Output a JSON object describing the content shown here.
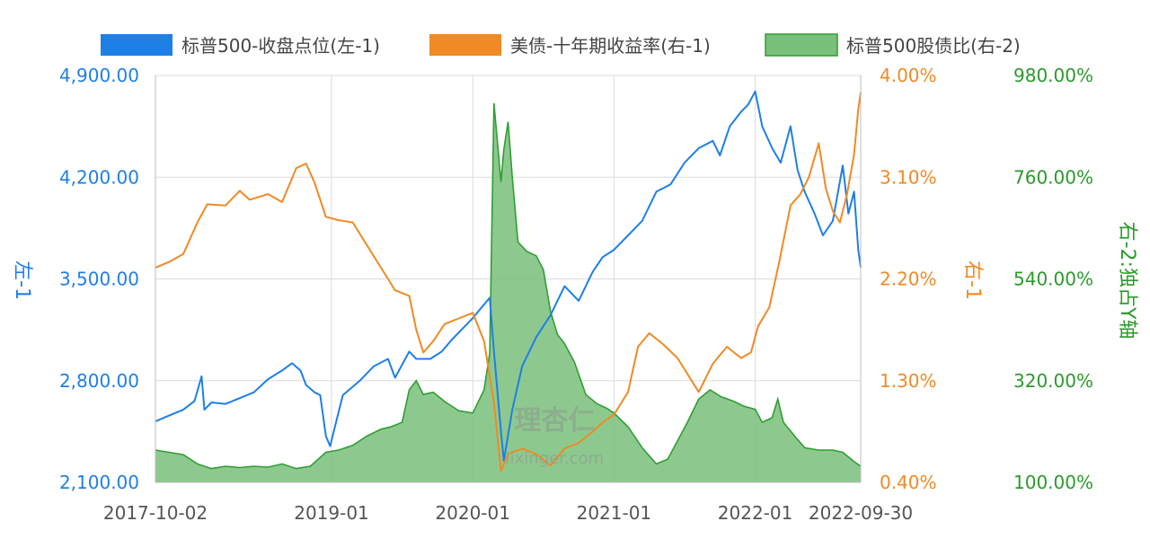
{
  "chart_data": {
    "type": "line",
    "legend": {
      "placement": "top",
      "entries": [
        {
          "label": "标普500-收盘点位(左-1)",
          "color": "#1e7fe6",
          "kind": "line"
        },
        {
          "label": "美债-十年期收益率(右-1)",
          "color": "#f08a24",
          "kind": "line"
        },
        {
          "label": "标普500股债比(右-2)",
          "color": "#79c07a",
          "kind": "area"
        }
      ]
    },
    "x_ticks": [
      "2017-10-02",
      "2019-01",
      "2020-01",
      "2021-01",
      "2022-01",
      "2022-09-30"
    ],
    "x_tick_dates": [
      2017.753,
      2019.0,
      2020.0,
      2021.0,
      2022.0,
      2022.747
    ],
    "x_range": [
      2017.753,
      2022.747
    ],
    "axes": {
      "left": {
        "title": "左-1",
        "color": "#1e7fe6",
        "ylim": [
          2100,
          4900
        ],
        "ticks": [
          "4,900.00",
          "4,200.00",
          "3,500.00",
          "2,800.00",
          "2,100.00"
        ],
        "tick_values": [
          4900,
          4200,
          3500,
          2800,
          2100
        ]
      },
      "right1": {
        "title": "右-1",
        "color": "#f08a24",
        "ylim": [
          0.4,
          4.0
        ],
        "ticks": [
          "4.00%",
          "3.10%",
          "2.20%",
          "1.30%",
          "0.40%"
        ],
        "tick_values": [
          4.0,
          3.1,
          2.2,
          1.3,
          0.4
        ]
      },
      "right2": {
        "title": "右-2:独占Y轴",
        "color": "#2a9a2a",
        "ylim": [
          100,
          980
        ],
        "ticks": [
          "980.00%",
          "760.00%",
          "540.00%",
          "320.00%",
          "100.00%"
        ],
        "tick_values": [
          980,
          760,
          540,
          320,
          100
        ]
      }
    },
    "grid": true,
    "watermark": "理杏仁 lixinger.com",
    "series": [
      {
        "name": "标普500-收盘点位(左-1)",
        "axis": "left",
        "color": "#1e7fe6",
        "style": "line",
        "points": [
          [
            2017.753,
            2520
          ],
          [
            2017.85,
            2560
          ],
          [
            2017.95,
            2600
          ],
          [
            2018.03,
            2660
          ],
          [
            2018.08,
            2830
          ],
          [
            2018.1,
            2600
          ],
          [
            2018.15,
            2650
          ],
          [
            2018.25,
            2640
          ],
          [
            2018.35,
            2680
          ],
          [
            2018.45,
            2720
          ],
          [
            2018.55,
            2810
          ],
          [
            2018.65,
            2870
          ],
          [
            2018.72,
            2920
          ],
          [
            2018.78,
            2870
          ],
          [
            2018.82,
            2770
          ],
          [
            2018.88,
            2720
          ],
          [
            2018.92,
            2700
          ],
          [
            2018.96,
            2420
          ],
          [
            2018.99,
            2350
          ],
          [
            2019.08,
            2700
          ],
          [
            2019.2,
            2800
          ],
          [
            2019.3,
            2900
          ],
          [
            2019.4,
            2950
          ],
          [
            2019.45,
            2820
          ],
          [
            2019.55,
            3000
          ],
          [
            2019.6,
            2950
          ],
          [
            2019.7,
            2950
          ],
          [
            2019.78,
            3000
          ],
          [
            2019.85,
            3080
          ],
          [
            2019.92,
            3150
          ],
          [
            2020.0,
            3230
          ],
          [
            2020.05,
            3290
          ],
          [
            2020.12,
            3370
          ],
          [
            2020.15,
            3000
          ],
          [
            2020.2,
            2450
          ],
          [
            2020.22,
            2250
          ],
          [
            2020.28,
            2600
          ],
          [
            2020.35,
            2900
          ],
          [
            2020.45,
            3100
          ],
          [
            2020.55,
            3250
          ],
          [
            2020.65,
            3450
          ],
          [
            2020.75,
            3350
          ],
          [
            2020.85,
            3550
          ],
          [
            2020.92,
            3650
          ],
          [
            2021.0,
            3700
          ],
          [
            2021.1,
            3800
          ],
          [
            2021.2,
            3900
          ],
          [
            2021.3,
            4100
          ],
          [
            2021.4,
            4150
          ],
          [
            2021.5,
            4300
          ],
          [
            2021.6,
            4400
          ],
          [
            2021.7,
            4450
          ],
          [
            2021.75,
            4350
          ],
          [
            2021.82,
            4550
          ],
          [
            2021.9,
            4650
          ],
          [
            2021.95,
            4700
          ],
          [
            2022.0,
            4790
          ],
          [
            2022.05,
            4550
          ],
          [
            2022.12,
            4400
          ],
          [
            2022.18,
            4300
          ],
          [
            2022.25,
            4550
          ],
          [
            2022.3,
            4250
          ],
          [
            2022.35,
            4100
          ],
          [
            2022.42,
            3950
          ],
          [
            2022.48,
            3800
          ],
          [
            2022.55,
            3900
          ],
          [
            2022.62,
            4280
          ],
          [
            2022.66,
            3950
          ],
          [
            2022.7,
            4100
          ],
          [
            2022.73,
            3700
          ],
          [
            2022.747,
            3580
          ]
        ]
      },
      {
        "name": "美债-十年期收益率(右-1)",
        "axis": "right1",
        "color": "#f08a24",
        "style": "line",
        "points": [
          [
            2017.753,
            2.3
          ],
          [
            2017.85,
            2.35
          ],
          [
            2017.95,
            2.42
          ],
          [
            2018.05,
            2.7
          ],
          [
            2018.12,
            2.86
          ],
          [
            2018.25,
            2.85
          ],
          [
            2018.35,
            2.98
          ],
          [
            2018.42,
            2.9
          ],
          [
            2018.55,
            2.95
          ],
          [
            2018.65,
            2.88
          ],
          [
            2018.75,
            3.18
          ],
          [
            2018.82,
            3.22
          ],
          [
            2018.88,
            3.05
          ],
          [
            2018.96,
            2.75
          ],
          [
            2019.05,
            2.72
          ],
          [
            2019.15,
            2.7
          ],
          [
            2019.25,
            2.5
          ],
          [
            2019.35,
            2.3
          ],
          [
            2019.45,
            2.1
          ],
          [
            2019.55,
            2.05
          ],
          [
            2019.6,
            1.75
          ],
          [
            2019.65,
            1.55
          ],
          [
            2019.72,
            1.65
          ],
          [
            2019.8,
            1.8
          ],
          [
            2019.9,
            1.85
          ],
          [
            2020.0,
            1.9
          ],
          [
            2020.08,
            1.65
          ],
          [
            2020.15,
            1.1
          ],
          [
            2020.2,
            0.5
          ],
          [
            2020.25,
            0.65
          ],
          [
            2020.35,
            0.7
          ],
          [
            2020.45,
            0.65
          ],
          [
            2020.55,
            0.55
          ],
          [
            2020.65,
            0.7
          ],
          [
            2020.75,
            0.75
          ],
          [
            2020.85,
            0.85
          ],
          [
            2020.92,
            0.93
          ],
          [
            2021.0,
            1.0
          ],
          [
            2021.1,
            1.2
          ],
          [
            2021.17,
            1.6
          ],
          [
            2021.25,
            1.72
          ],
          [
            2021.35,
            1.62
          ],
          [
            2021.45,
            1.5
          ],
          [
            2021.55,
            1.3
          ],
          [
            2021.6,
            1.2
          ],
          [
            2021.7,
            1.45
          ],
          [
            2021.8,
            1.6
          ],
          [
            2021.9,
            1.5
          ],
          [
            2021.97,
            1.55
          ],
          [
            2022.02,
            1.78
          ],
          [
            2022.1,
            1.95
          ],
          [
            2022.17,
            2.35
          ],
          [
            2022.25,
            2.85
          ],
          [
            2022.32,
            2.95
          ],
          [
            2022.38,
            3.1
          ],
          [
            2022.45,
            3.4
          ],
          [
            2022.5,
            3.0
          ],
          [
            2022.55,
            2.8
          ],
          [
            2022.6,
            2.7
          ],
          [
            2022.65,
            2.95
          ],
          [
            2022.7,
            3.3
          ],
          [
            2022.73,
            3.7
          ],
          [
            2022.747,
            3.85
          ]
        ]
      },
      {
        "name": "标普500股债比(右-2)",
        "axis": "right2",
        "color": "#79c07a",
        "style": "area",
        "points": [
          [
            2017.753,
            170
          ],
          [
            2017.85,
            165
          ],
          [
            2017.95,
            160
          ],
          [
            2018.05,
            140
          ],
          [
            2018.15,
            130
          ],
          [
            2018.25,
            135
          ],
          [
            2018.35,
            132
          ],
          [
            2018.45,
            135
          ],
          [
            2018.55,
            133
          ],
          [
            2018.65,
            140
          ],
          [
            2018.75,
            130
          ],
          [
            2018.85,
            135
          ],
          [
            2018.96,
            165
          ],
          [
            2019.05,
            170
          ],
          [
            2019.15,
            180
          ],
          [
            2019.25,
            200
          ],
          [
            2019.35,
            215
          ],
          [
            2019.42,
            220
          ],
          [
            2019.5,
            230
          ],
          [
            2019.55,
            300
          ],
          [
            2019.6,
            320
          ],
          [
            2019.65,
            290
          ],
          [
            2019.72,
            295
          ],
          [
            2019.8,
            275
          ],
          [
            2019.9,
            255
          ],
          [
            2020.0,
            250
          ],
          [
            2020.08,
            300
          ],
          [
            2020.12,
            380
          ],
          [
            2020.15,
            920
          ],
          [
            2020.2,
            750
          ],
          [
            2020.22,
            820
          ],
          [
            2020.25,
            880
          ],
          [
            2020.28,
            760
          ],
          [
            2020.32,
            620
          ],
          [
            2020.38,
            600
          ],
          [
            2020.45,
            590
          ],
          [
            2020.5,
            560
          ],
          [
            2020.55,
            470
          ],
          [
            2020.6,
            420
          ],
          [
            2020.65,
            400
          ],
          [
            2020.72,
            360
          ],
          [
            2020.8,
            290
          ],
          [
            2020.88,
            270
          ],
          [
            2020.95,
            260
          ],
          [
            2021.0,
            250
          ],
          [
            2021.1,
            220
          ],
          [
            2021.2,
            175
          ],
          [
            2021.3,
            140
          ],
          [
            2021.38,
            150
          ],
          [
            2021.45,
            190
          ],
          [
            2021.52,
            230
          ],
          [
            2021.6,
            280
          ],
          [
            2021.68,
            300
          ],
          [
            2021.76,
            285
          ],
          [
            2021.85,
            275
          ],
          [
            2021.92,
            265
          ],
          [
            2022.0,
            258
          ],
          [
            2022.05,
            230
          ],
          [
            2022.12,
            240
          ],
          [
            2022.16,
            280
          ],
          [
            2022.2,
            230
          ],
          [
            2022.28,
            200
          ],
          [
            2022.35,
            175
          ],
          [
            2022.45,
            170
          ],
          [
            2022.55,
            170
          ],
          [
            2022.62,
            165
          ],
          [
            2022.7,
            145
          ],
          [
            2022.747,
            135
          ]
        ]
      }
    ]
  }
}
